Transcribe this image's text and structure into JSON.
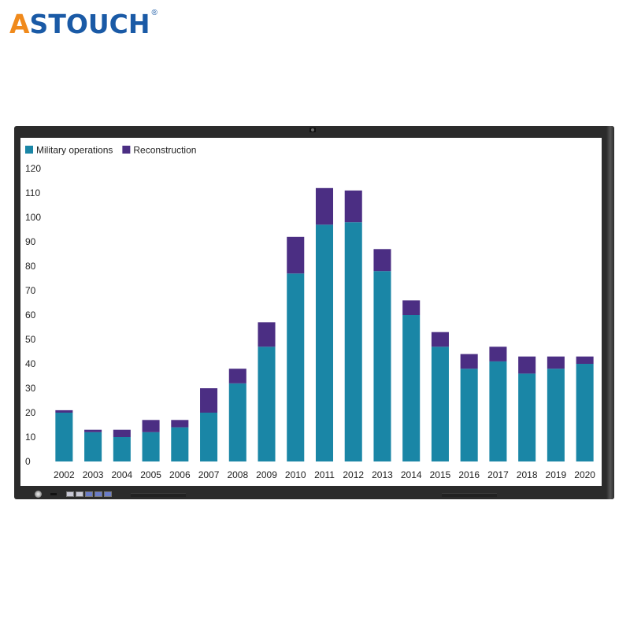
{
  "logo": {
    "first_letter": "A",
    "rest": "STOUCH",
    "registered": "®",
    "colors": {
      "first_letter": "#f08a1c",
      "rest": "#1a5aa6"
    }
  },
  "monitor": {
    "front_controls": [
      "power-button-icon",
      "ir-sensor-icon",
      "usb-port-icon",
      "hdmi-port-icon",
      "menu-button-icon",
      "volume-button-icon",
      "input-button-icon"
    ]
  },
  "chart_data": {
    "type": "bar",
    "stacked": true,
    "categories": [
      "2002",
      "2003",
      "2004",
      "2005",
      "2006",
      "2007",
      "2008",
      "2009",
      "2010",
      "2011",
      "2012",
      "2013",
      "2014",
      "2015",
      "2016",
      "2017",
      "2018",
      "2019",
      "2020"
    ],
    "series": [
      {
        "name": "Military operations",
        "color": "#1a86a6",
        "values": [
          20,
          12,
          10,
          12,
          14,
          20,
          32,
          47,
          77,
          97,
          98,
          78,
          60,
          47,
          38,
          41,
          36,
          38,
          40
        ]
      },
      {
        "name": "Reconstruction",
        "color": "#4b2e83",
        "values": [
          1,
          1,
          3,
          5,
          3,
          10,
          6,
          10,
          15,
          15,
          13,
          9,
          6,
          6,
          6,
          6,
          7,
          5,
          3
        ]
      }
    ],
    "yticks": [
      0,
      10,
      20,
      30,
      40,
      50,
      60,
      70,
      80,
      90,
      100,
      110,
      120
    ],
    "ylim": [
      0,
      120
    ],
    "title": "",
    "xlabel": "",
    "ylabel": "",
    "grid": false,
    "legend_position": "top-left"
  }
}
